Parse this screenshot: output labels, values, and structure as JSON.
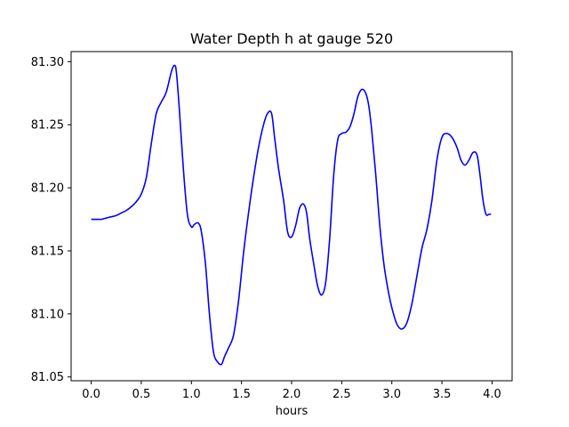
{
  "chart_data": {
    "type": "line",
    "title": "Water Depth h at gauge 520",
    "xlabel": "hours",
    "ylabel": "",
    "xlim": [
      -0.2,
      4.2
    ],
    "ylim": [
      81.047,
      81.308
    ],
    "xticks": [
      0.0,
      0.5,
      1.0,
      1.5,
      2.0,
      2.5,
      3.0,
      3.5,
      4.0
    ],
    "xtick_labels": [
      "0.0",
      "0.5",
      "1.0",
      "1.5",
      "2.0",
      "2.5",
      "3.0",
      "3.5",
      "4.0"
    ],
    "yticks": [
      81.05,
      81.1,
      81.15,
      81.2,
      81.25,
      81.3
    ],
    "ytick_labels": [
      "81.05",
      "81.10",
      "81.15",
      "81.20",
      "81.25",
      "81.30"
    ],
    "grid": false,
    "series": [
      {
        "color": "#0000ff",
        "x": [
          0.0,
          0.05,
          0.1,
          0.15,
          0.2,
          0.25,
          0.3,
          0.35,
          0.4,
          0.45,
          0.5,
          0.55,
          0.6,
          0.65,
          0.7,
          0.75,
          0.8,
          0.83,
          0.85,
          0.88,
          0.92,
          0.96,
          1.0,
          1.03,
          1.07,
          1.1,
          1.14,
          1.18,
          1.22,
          1.26,
          1.3,
          1.33,
          1.37,
          1.42,
          1.47,
          1.52,
          1.57,
          1.62,
          1.67,
          1.72,
          1.76,
          1.8,
          1.83,
          1.87,
          1.92,
          1.96,
          2.0,
          2.04,
          2.08,
          2.12,
          2.15,
          2.18,
          2.22,
          2.26,
          2.3,
          2.34,
          2.38,
          2.42,
          2.46,
          2.5,
          2.54,
          2.58,
          2.62,
          2.66,
          2.7,
          2.74,
          2.77,
          2.8,
          2.84,
          2.88,
          2.92,
          2.96,
          3.0,
          3.05,
          3.1,
          3.15,
          3.2,
          3.25,
          3.3,
          3.35,
          3.4,
          3.45,
          3.5,
          3.55,
          3.6,
          3.65,
          3.69,
          3.73,
          3.77,
          3.81,
          3.85,
          3.88,
          3.91,
          3.94,
          3.97,
          3.99
        ],
        "y": [
          81.175,
          81.175,
          81.175,
          81.176,
          81.177,
          81.178,
          81.18,
          81.182,
          81.185,
          81.189,
          81.195,
          81.208,
          81.235,
          81.259,
          81.268,
          81.276,
          81.292,
          81.297,
          81.292,
          81.262,
          81.215,
          81.179,
          81.169,
          81.171,
          81.172,
          81.165,
          81.14,
          81.1,
          81.07,
          81.062,
          81.06,
          81.066,
          81.073,
          81.083,
          81.11,
          81.148,
          81.18,
          81.208,
          81.232,
          81.25,
          81.259,
          81.259,
          81.24,
          81.215,
          81.19,
          81.165,
          81.161,
          81.17,
          81.184,
          81.187,
          81.18,
          81.16,
          81.14,
          81.122,
          81.115,
          81.125,
          81.16,
          81.21,
          81.238,
          81.243,
          81.244,
          81.248,
          81.258,
          81.272,
          81.278,
          81.275,
          81.265,
          81.245,
          81.21,
          81.17,
          81.14,
          81.12,
          81.105,
          81.092,
          81.088,
          81.093,
          81.108,
          81.13,
          81.152,
          81.167,
          81.19,
          81.222,
          81.24,
          81.243,
          81.24,
          81.232,
          81.222,
          81.218,
          81.222,
          81.228,
          81.226,
          81.21,
          81.19,
          81.179,
          81.179,
          81.179
        ]
      }
    ]
  }
}
